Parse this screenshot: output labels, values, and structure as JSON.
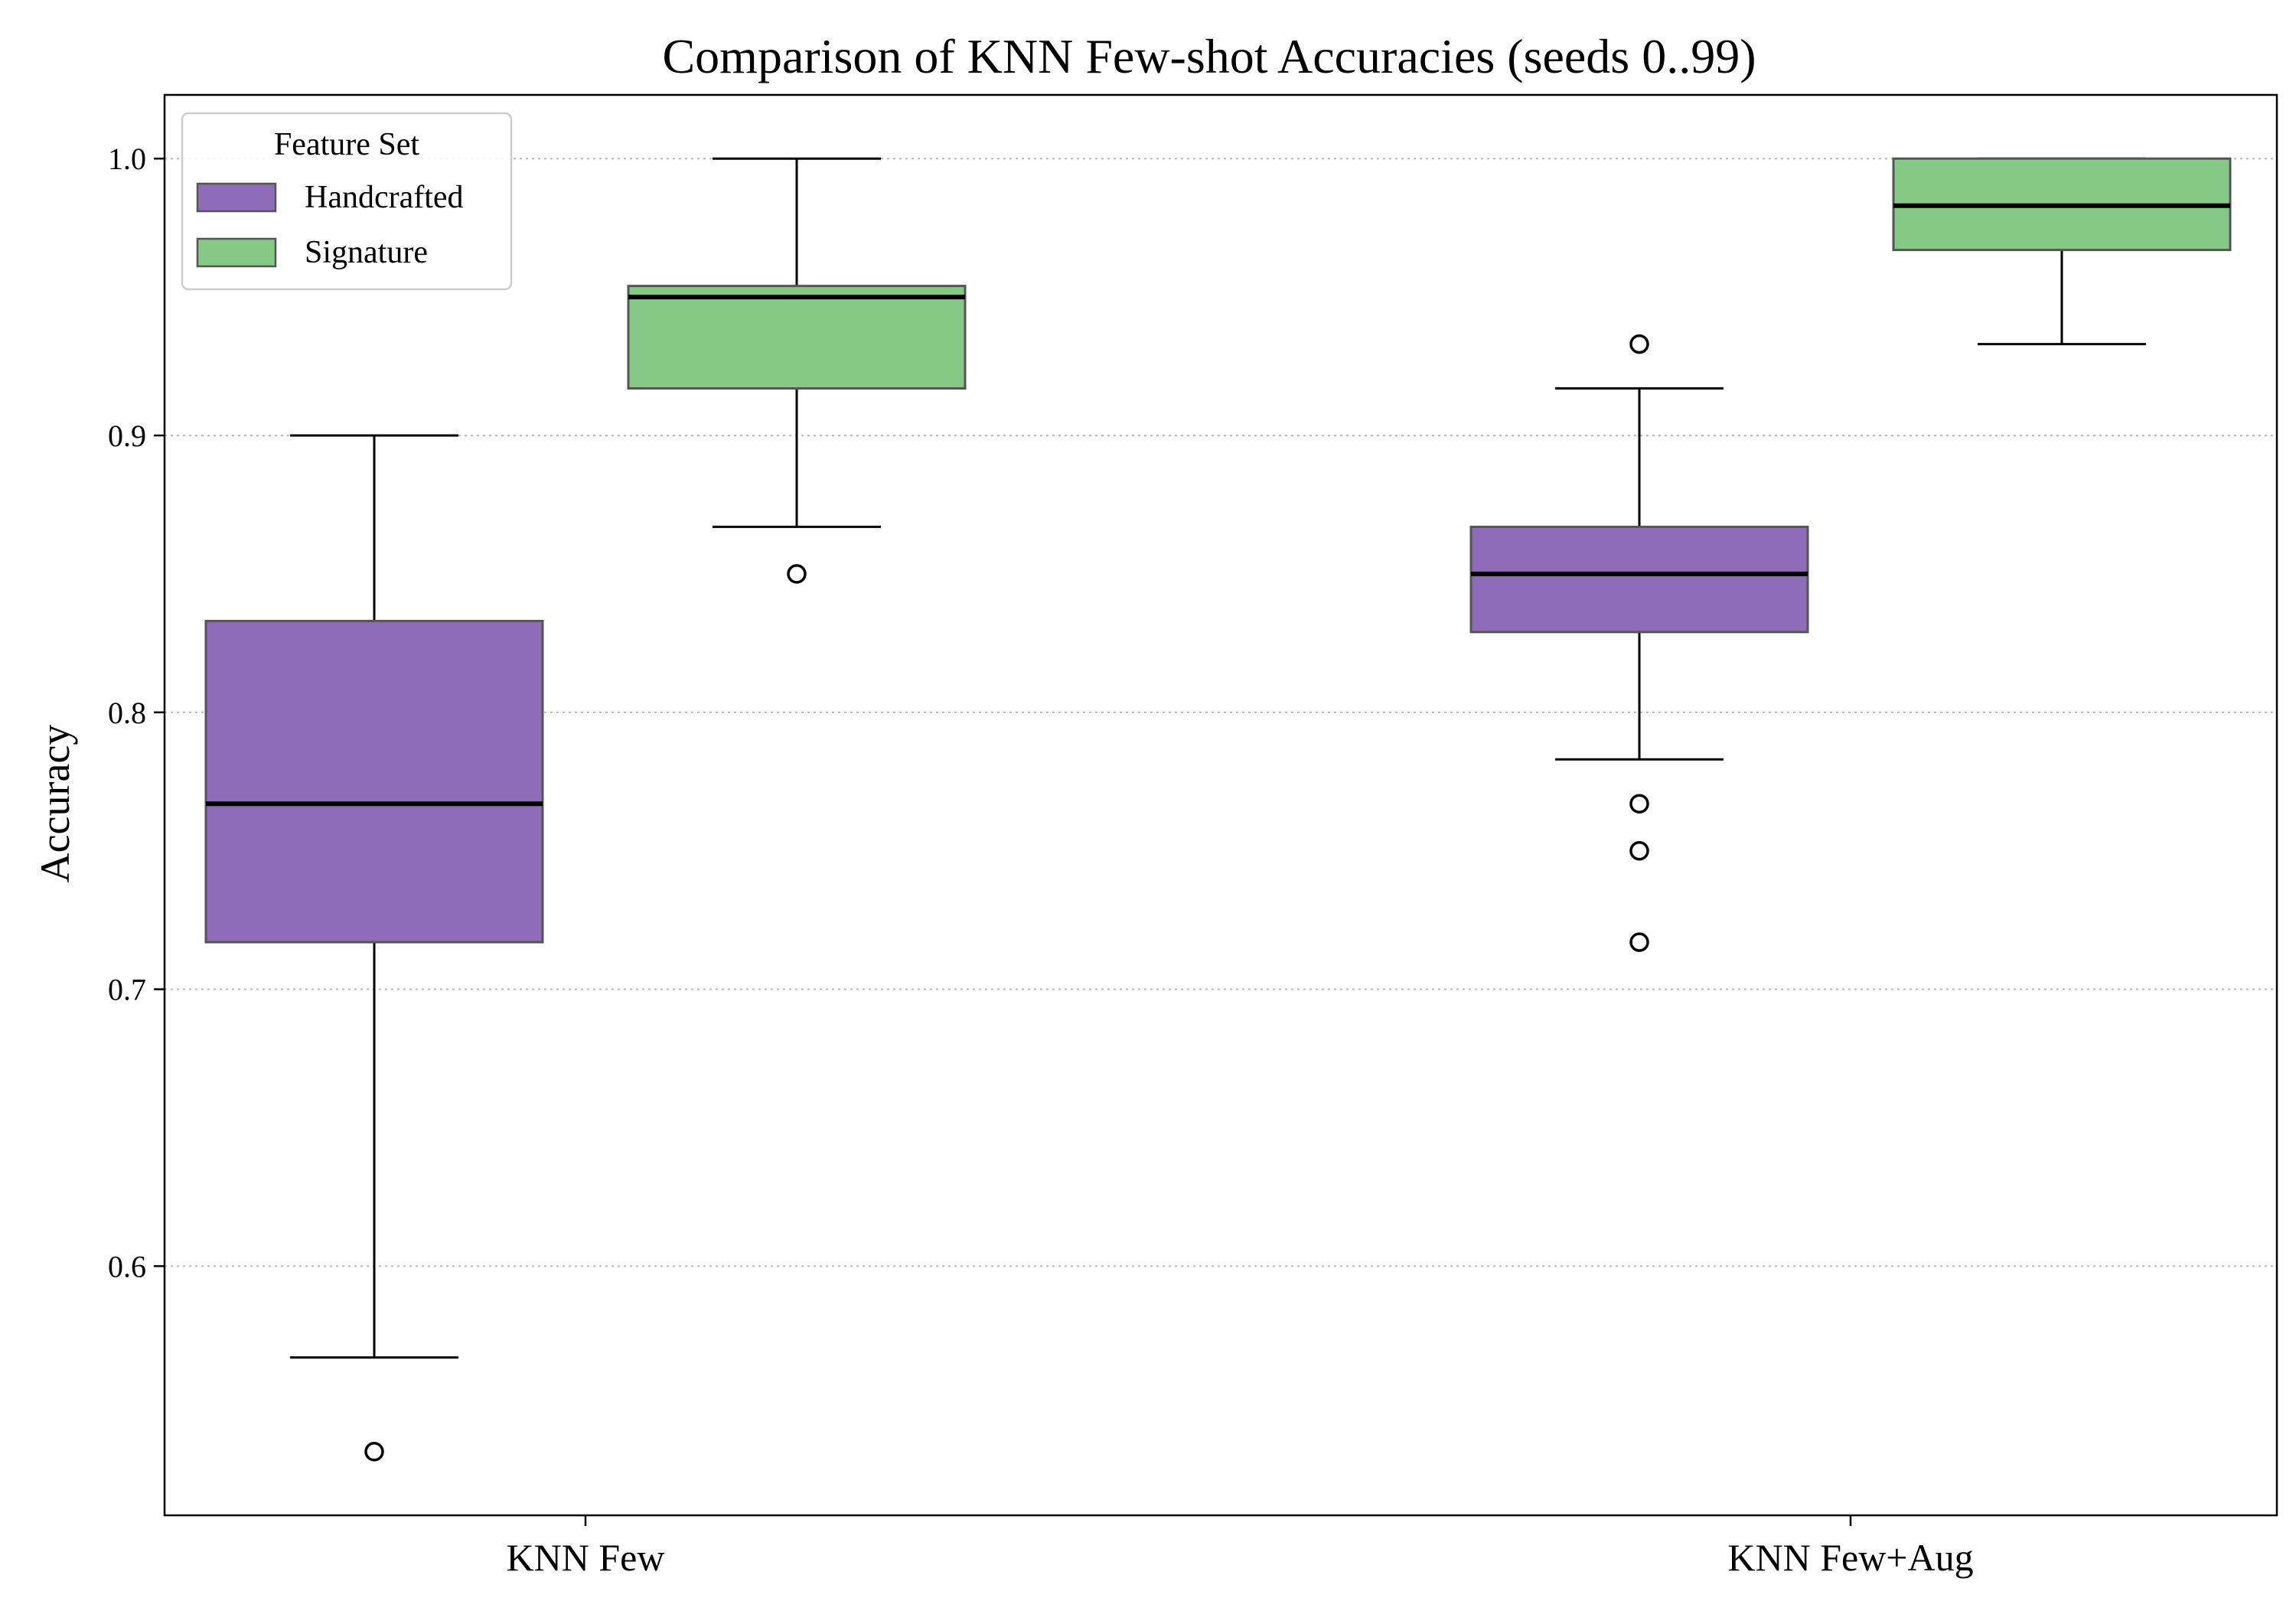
{
  "chart_data": {
    "type": "box",
    "title": "Comparison of KNN Few-shot Accuracies (seeds 0..99)",
    "xlabel": "",
    "ylabel": "Accuracy",
    "categories": [
      "KNN Few",
      "KNN Few+Aug"
    ],
    "ylim": [
      0.51,
      1.023
    ],
    "yticks": [
      0.6,
      0.7,
      0.8,
      0.9,
      1.0
    ],
    "ytick_labels": [
      "0.6",
      "0.7",
      "0.8",
      "0.9",
      "1.0"
    ],
    "grid": "y-dotted",
    "legend": {
      "title": "Feature Set",
      "placement": "top-left",
      "entries": [
        "Handcrafted",
        "Signature"
      ]
    },
    "series": [
      {
        "name": "Handcrafted",
        "color": "#8f6cb7",
        "boxes": [
          {
            "category": "KNN Few",
            "whisker_low": 0.567,
            "q1": 0.717,
            "median": 0.767,
            "q3": 0.833,
            "whisker_high": 0.9,
            "outliers": [
              0.533
            ]
          },
          {
            "category": "KNN Few+Aug",
            "whisker_low": 0.783,
            "q1": 0.829,
            "median": 0.85,
            "q3": 0.867,
            "whisker_high": 0.917,
            "outliers": [
              0.933,
              0.767,
              0.75,
              0.717
            ]
          }
        ]
      },
      {
        "name": "Signature",
        "color": "#86c986",
        "boxes": [
          {
            "category": "KNN Few",
            "whisker_low": 0.867,
            "q1": 0.917,
            "median": 0.95,
            "q3": 0.954,
            "whisker_high": 1.0,
            "outliers": [
              0.85
            ]
          },
          {
            "category": "KNN Few+Aug",
            "whisker_low": 0.933,
            "q1": 0.967,
            "median": 0.983,
            "q3": 1.0,
            "whisker_high": 1.0,
            "outliers": []
          }
        ]
      }
    ]
  }
}
